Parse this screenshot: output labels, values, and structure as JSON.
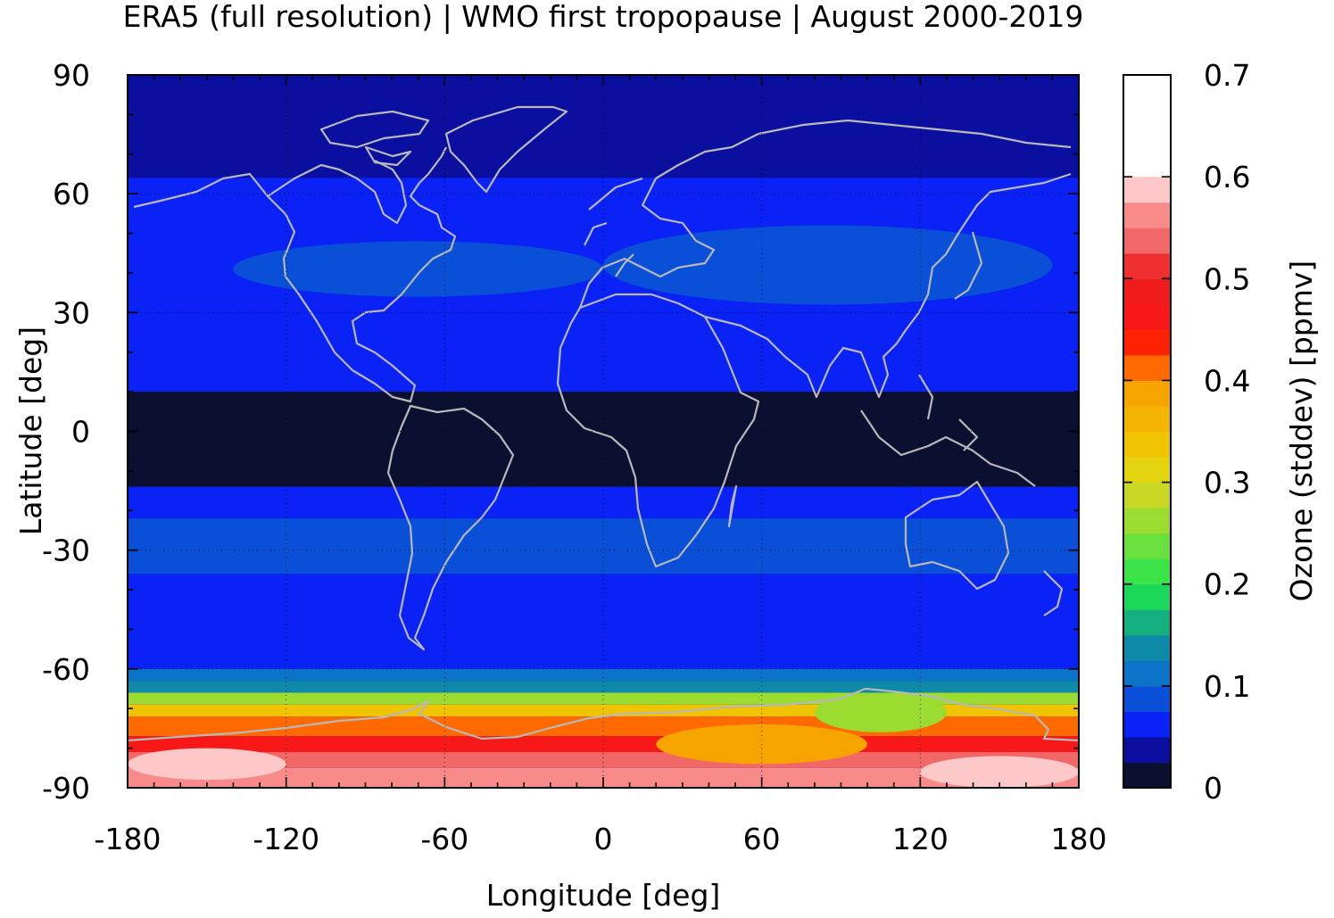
{
  "chart_data": {
    "type": "heatmap",
    "title": "ERA5 (full resolution) | WMO first tropopause | August 2000-2019",
    "xlabel": "Longitude [deg]",
    "ylabel": "Latitude [deg]",
    "colorbar_label": "Ozone (stddev) [ppmv]",
    "xlim": [
      -180,
      180
    ],
    "ylim": [
      -90,
      90
    ],
    "xticks": [
      -180,
      -120,
      -60,
      0,
      60,
      120,
      180
    ],
    "xtick_labels": [
      "-180",
      "-120",
      "-60",
      "0",
      "60",
      "120",
      "180"
    ],
    "yticks": [
      90,
      60,
      30,
      0,
      -30,
      -60,
      -90
    ],
    "ytick_labels": [
      "90",
      "60",
      "30",
      "0",
      "-30",
      "-60",
      "-90"
    ],
    "grid": true,
    "colorbar": {
      "range": [
        0,
        0.7
      ],
      "ticks": [
        0,
        0.1,
        0.2,
        0.3,
        0.4,
        0.5,
        0.6,
        0.7
      ],
      "tick_labels": [
        "0",
        "0.1",
        "0.2",
        "0.3",
        "0.4",
        "0.5",
        "0.6",
        "0.7"
      ],
      "step": 0.025,
      "colors": [
        "#0c1030",
        "#0a0fa0",
        "#0a22f5",
        "#0a4fd8",
        "#0c74c8",
        "#0e8aa8",
        "#14b080",
        "#1cd85a",
        "#3ae448",
        "#6ae03e",
        "#9cdc30",
        "#c8d824",
        "#e4d410",
        "#f0c400",
        "#f4b400",
        "#f8a400",
        "#ff6a00",
        "#ff2200",
        "#f81818",
        "#f01c1c",
        "#ee3030",
        "#f26868",
        "#f88a8a",
        "#ffc8c8"
      ]
    },
    "zonal_bands": [
      {
        "lat_min": 64,
        "lat_max": 90,
        "value": 0.04
      },
      {
        "lat_min": 26,
        "lat_max": 64,
        "value": 0.05
      },
      {
        "lat_min": 10,
        "lat_max": 26,
        "value": 0.05
      },
      {
        "lat_min": -14,
        "lat_max": 10,
        "value": 0.02
      },
      {
        "lat_min": -22,
        "lat_max": -14,
        "value": 0.05
      },
      {
        "lat_min": -36,
        "lat_max": -22,
        "value": 0.08
      },
      {
        "lat_min": -56,
        "lat_max": -36,
        "value": 0.05
      },
      {
        "lat_min": -60,
        "lat_max": -56,
        "value": 0.06
      },
      {
        "lat_min": -63,
        "lat_max": -60,
        "value": 0.1
      },
      {
        "lat_min": -66,
        "lat_max": -63,
        "value": 0.15
      },
      {
        "lat_min": -69,
        "lat_max": -66,
        "value": 0.25
      },
      {
        "lat_min": -72,
        "lat_max": -69,
        "value": 0.33
      },
      {
        "lat_min": -77,
        "lat_max": -72,
        "value": 0.4
      },
      {
        "lat_min": -81,
        "lat_max": -77,
        "value": 0.45
      },
      {
        "lat_min": -85,
        "lat_max": -81,
        "value": 0.53
      },
      {
        "lat_min": -90,
        "lat_max": -85,
        "value": 0.57
      }
    ],
    "regional_features": [
      {
        "lon_min": -140,
        "lon_max": 0,
        "lat_min": 34,
        "lat_max": 48,
        "value": 0.08
      },
      {
        "lon_min": 0,
        "lon_max": 170,
        "lat_min": 32,
        "lat_max": 52,
        "value": 0.08
      },
      {
        "lon_min": 20,
        "lon_max": 100,
        "lat_min": -84,
        "lat_max": -74,
        "value": 0.38
      },
      {
        "lon_min": 80,
        "lon_max": 130,
        "lat_min": -76,
        "lat_max": -66,
        "value": 0.27
      },
      {
        "lon_min": -180,
        "lon_max": -120,
        "lat_min": -88,
        "lat_max": -80,
        "value": 0.62
      },
      {
        "lon_min": 120,
        "lon_max": 180,
        "lat_min": -90,
        "lat_max": -82,
        "value": 0.58
      }
    ]
  }
}
